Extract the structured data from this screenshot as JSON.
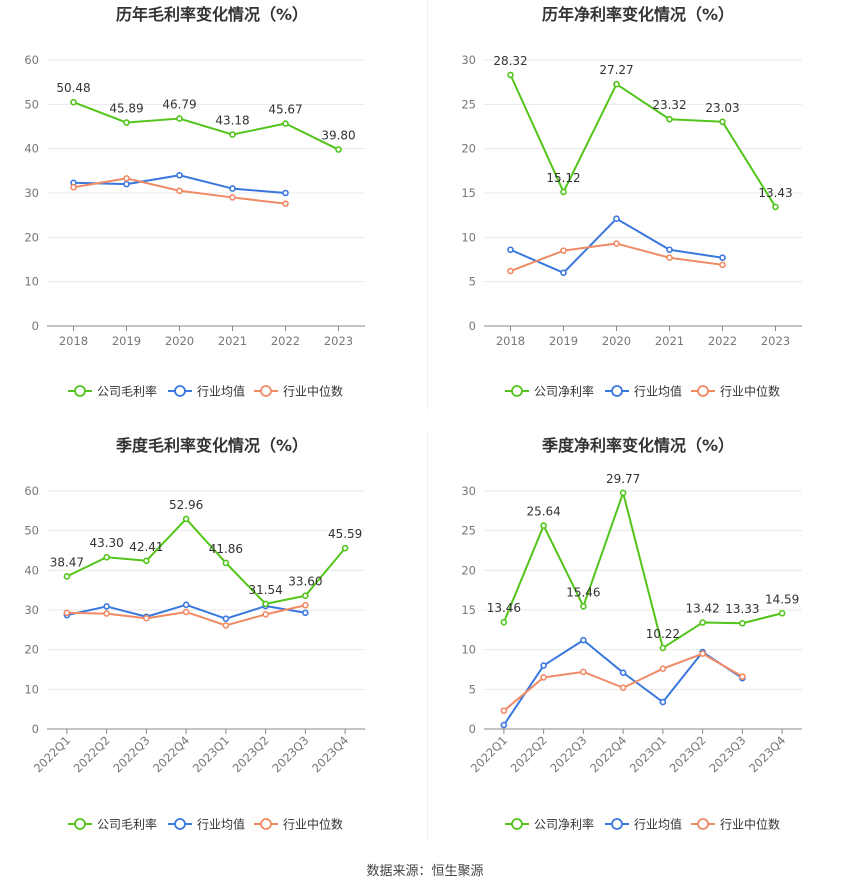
{
  "footer": {
    "source": "数据来源：恒生聚源"
  },
  "colors": {
    "company": "#52c41a",
    "industry_avg": "#3a78e0",
    "industry_median": "#f08a64"
  },
  "chart_data": [
    {
      "type": "line",
      "title": "历年毛利率变化情况（%）",
      "categories": [
        "2018",
        "2019",
        "2020",
        "2021",
        "2022",
        "2023"
      ],
      "ylim": [
        0,
        60
      ],
      "yticks": [
        0,
        10,
        20,
        30,
        40,
        50,
        60
      ],
      "grid": true,
      "legend_position": "bottom",
      "series": [
        {
          "name": "公司毛利率",
          "color": "#52c41a",
          "labeled": true,
          "values": [
            50.48,
            45.89,
            46.79,
            43.18,
            45.67,
            39.8
          ],
          "labels": [
            "50.48",
            "45.89",
            "46.79",
            "43.18",
            "45.67",
            "39.80"
          ]
        },
        {
          "name": "行业均值",
          "color": "#3a78e0",
          "labeled": false,
          "values": [
            32.3,
            32.0,
            34.0,
            31.0,
            30.0,
            null
          ]
        },
        {
          "name": "行业中位数",
          "color": "#f08a64",
          "labeled": false,
          "values": [
            31.3,
            33.3,
            30.5,
            29.0,
            27.6,
            null
          ]
        }
      ]
    },
    {
      "type": "line",
      "title": "历年净利率变化情况（%）",
      "categories": [
        "2018",
        "2019",
        "2020",
        "2021",
        "2022",
        "2023"
      ],
      "ylim": [
        0,
        30
      ],
      "yticks": [
        0,
        5,
        10,
        15,
        20,
        25,
        30
      ],
      "grid": true,
      "legend_position": "bottom",
      "series": [
        {
          "name": "公司净利率",
          "color": "#52c41a",
          "labeled": true,
          "values": [
            28.32,
            15.12,
            27.27,
            23.32,
            23.03,
            13.43
          ],
          "labels": [
            "28.32",
            "15.12",
            "27.27",
            "23.32",
            "23.03",
            "13.43"
          ]
        },
        {
          "name": "行业均值",
          "color": "#3a78e0",
          "labeled": false,
          "values": [
            8.6,
            6.0,
            12.1,
            8.6,
            7.7,
            null
          ]
        },
        {
          "name": "行业中位数",
          "color": "#f08a64",
          "labeled": false,
          "values": [
            6.2,
            8.5,
            9.3,
            7.7,
            6.9,
            null
          ]
        }
      ]
    },
    {
      "type": "line",
      "title": "季度毛利率变化情况（%）",
      "categories": [
        "2022Q1",
        "2022Q2",
        "2022Q3",
        "2022Q4",
        "2023Q1",
        "2023Q2",
        "2023Q3",
        "2023Q4"
      ],
      "ylim": [
        0,
        60
      ],
      "yticks": [
        0,
        10,
        20,
        30,
        40,
        50,
        60
      ],
      "grid": true,
      "legend_position": "bottom",
      "series": [
        {
          "name": "公司毛利率",
          "color": "#52c41a",
          "labeled": true,
          "values": [
            38.47,
            43.3,
            42.41,
            52.96,
            41.86,
            31.54,
            33.6,
            45.59
          ],
          "labels": [
            "38.47",
            "43.30",
            "42.41",
            "52.96",
            "41.86",
            "31.54",
            "33.60",
            "45.59"
          ]
        },
        {
          "name": "行业均值",
          "color": "#3a78e0",
          "labeled": false,
          "values": [
            28.7,
            30.9,
            28.3,
            31.3,
            27.8,
            31.0,
            29.3,
            null
          ]
        },
        {
          "name": "行业中位数",
          "color": "#f08a64",
          "labeled": false,
          "values": [
            29.3,
            29.1,
            27.9,
            29.5,
            26.1,
            28.9,
            31.2,
            null
          ]
        }
      ]
    },
    {
      "type": "line",
      "title": "季度净利率变化情况（%）",
      "categories": [
        "2022Q1",
        "2022Q2",
        "2022Q3",
        "2022Q4",
        "2023Q1",
        "2023Q2",
        "2023Q3",
        "2023Q4"
      ],
      "ylim": [
        0,
        30
      ],
      "yticks": [
        0,
        5,
        10,
        15,
        20,
        25,
        30
      ],
      "grid": true,
      "legend_position": "bottom",
      "series": [
        {
          "name": "公司净利率",
          "color": "#52c41a",
          "labeled": true,
          "values": [
            13.46,
            25.64,
            15.46,
            29.77,
            10.22,
            13.42,
            13.33,
            14.59
          ],
          "labels": [
            "13.46",
            "25.64",
            "15.46",
            "29.77",
            "10.22",
            "13.42",
            "13.33",
            "14.59"
          ]
        },
        {
          "name": "行业均值",
          "color": "#3a78e0",
          "labeled": false,
          "values": [
            0.5,
            8.0,
            11.2,
            7.1,
            3.4,
            9.7,
            6.4,
            null
          ]
        },
        {
          "name": "行业中位数",
          "color": "#f08a64",
          "labeled": false,
          "values": [
            2.3,
            6.5,
            7.2,
            5.2,
            7.6,
            9.5,
            6.6,
            null
          ]
        }
      ]
    }
  ]
}
